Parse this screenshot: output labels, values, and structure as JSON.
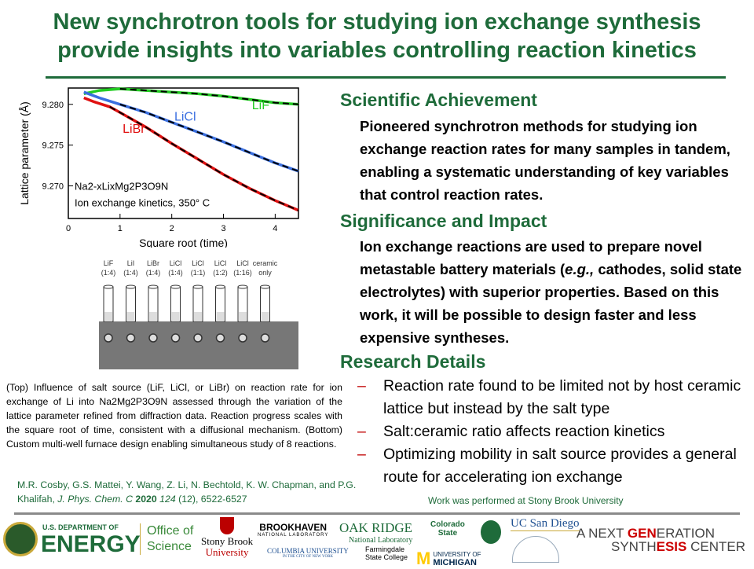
{
  "title": {
    "line1": "New synchrotron tools for studying ion exchange synthesis",
    "line2": "provide insights into variables controlling reaction kinetics"
  },
  "sections": [
    {
      "heading": "Scientific Achievement",
      "body": "Pioneered synchrotron methods for studying ion exchange reaction rates for many samples in tandem, enabling a systematic understanding of key variables that control reaction rates."
    },
    {
      "heading": "Significance and Impact",
      "body_pre": "Ion exchange reactions are used to prepare novel metastable battery materials (",
      "body_em": "e.g.,",
      "body_post": " cathodes, solid state electrolytes) with superior properties. Based on this work, it will be possible to design faster and less expensive syntheses."
    },
    {
      "heading": "Research Details",
      "bullets": [
        "Reaction rate found to be limited not by host ceramic lattice but instead by the salt type",
        "Salt:ceramic ratio affects reaction kinetics",
        "Optimizing mobility in salt source provides a general route for accelerating ion exchange"
      ]
    }
  ],
  "caption": "(Top) Influence of salt source (LiF, LiCl, or LiBr) on reaction rate for ion exchange of Li into Na2Mg2P3O9N assessed through the variation of the lattice parameter refined from diffraction data. Reaction progress scales with the square root of time, consistent with a diffusional mechanism. (Bottom) Custom multi-well furnace design enabling simultaneous study of 8 reactions.",
  "reference": {
    "authors": "M.R. Cosby, G.S. Mattei, Y. Wang, Z. Li, N. Bechtold, K. W. Chapman, and P.G. Khalifah, ",
    "journal": "J. Phys. Chem. C",
    "year": "2020",
    "volume": "124",
    "rest": " (12), 6522-6527"
  },
  "work_note": "Work was performed at Stony Brook University",
  "chart_data": {
    "type": "line",
    "xlabel": "Square root (time)",
    "ylabel": "Lattice parameter (Å)",
    "xlim": [
      0,
      4.45
    ],
    "ylim": [
      9.266,
      9.282
    ],
    "xticks": [
      0,
      1,
      2,
      3,
      4
    ],
    "yticks": [
      9.27,
      9.275,
      9.28
    ],
    "annotation1": "Na2-xLixMg2P3O9N",
    "annotation2": "Ion exchange kinetics, 350° C",
    "series": [
      {
        "name": "LiF",
        "color": "#22cc22",
        "x": [
          0.3,
          0.6,
          1,
          1.5,
          2,
          2.5,
          3,
          3.5,
          4,
          4.45
        ],
        "y": [
          9.2813,
          9.2817,
          9.2819,
          9.2817,
          9.2815,
          9.2813,
          9.281,
          9.2806,
          9.2802,
          9.28
        ]
      },
      {
        "name": "LiCl",
        "color": "#3a6fe0",
        "x": [
          0.3,
          0.6,
          1,
          1.5,
          2,
          2.5,
          3,
          3.5,
          4,
          4.45
        ],
        "y": [
          9.2815,
          9.2808,
          9.28,
          9.279,
          9.2778,
          9.2766,
          9.2754,
          9.2741,
          9.2728,
          9.2718
        ]
      },
      {
        "name": "LiBr",
        "color": "#e01010",
        "x": [
          0.3,
          0.5,
          0.8,
          1,
          1.5,
          2,
          2.5,
          3,
          3.5,
          4,
          4.45
        ],
        "y": [
          9.2808,
          9.2803,
          9.2797,
          9.279,
          9.2772,
          9.2752,
          9.2733,
          9.2714,
          9.2697,
          9.2682,
          9.267
        ]
      }
    ]
  },
  "furnace": {
    "wells": [
      {
        "l1": "LiF",
        "l2": "(1:4)"
      },
      {
        "l1": "LiI",
        "l2": "(1:4)"
      },
      {
        "l1": "LiBr",
        "l2": "(1:4)"
      },
      {
        "l1": "LiCl",
        "l2": "(1:4)"
      },
      {
        "l1": "LiCl",
        "l2": "(1:1)"
      },
      {
        "l1": "LiCl",
        "l2": "(1:2)"
      },
      {
        "l1": "LiCl",
        "l2": "(1:16)"
      },
      {
        "l1": "ceramic",
        "l2": "only"
      }
    ]
  },
  "logos": {
    "doe1": "U.S. DEPARTMENT OF",
    "doe2": "ENERGY",
    "os1": "Office of",
    "os2": "Science",
    "sb1": "Stony Brook",
    "sb2": "University",
    "bnl1": "BROOKHAVEN",
    "bnl2": "NATIONAL LABORATORY",
    "cu1": "COLUMBIA UNIVERSITY",
    "cu2": "IN THE CITY OF NEW YORK",
    "ornl1": "OAK RIDGE",
    "ornl2": "National Laboratory",
    "fsc1": "Farmingdale",
    "fsc2": "State College",
    "csu1": "Colorado",
    "csu2": "State",
    "um1": "UNIVERSITY OF",
    "um2": "MICHIGAN",
    "ucsd": "UC San Diego",
    "ng1a": "A NEXT ",
    "ng1b": "GEN",
    "ng1c": "ERATION",
    "ng2a": "SYNTH",
    "ng2b": "ESIS",
    "ng2c": " CENTER"
  },
  "colors": {
    "green": "#1e6b3a",
    "accent": "#c00000"
  }
}
